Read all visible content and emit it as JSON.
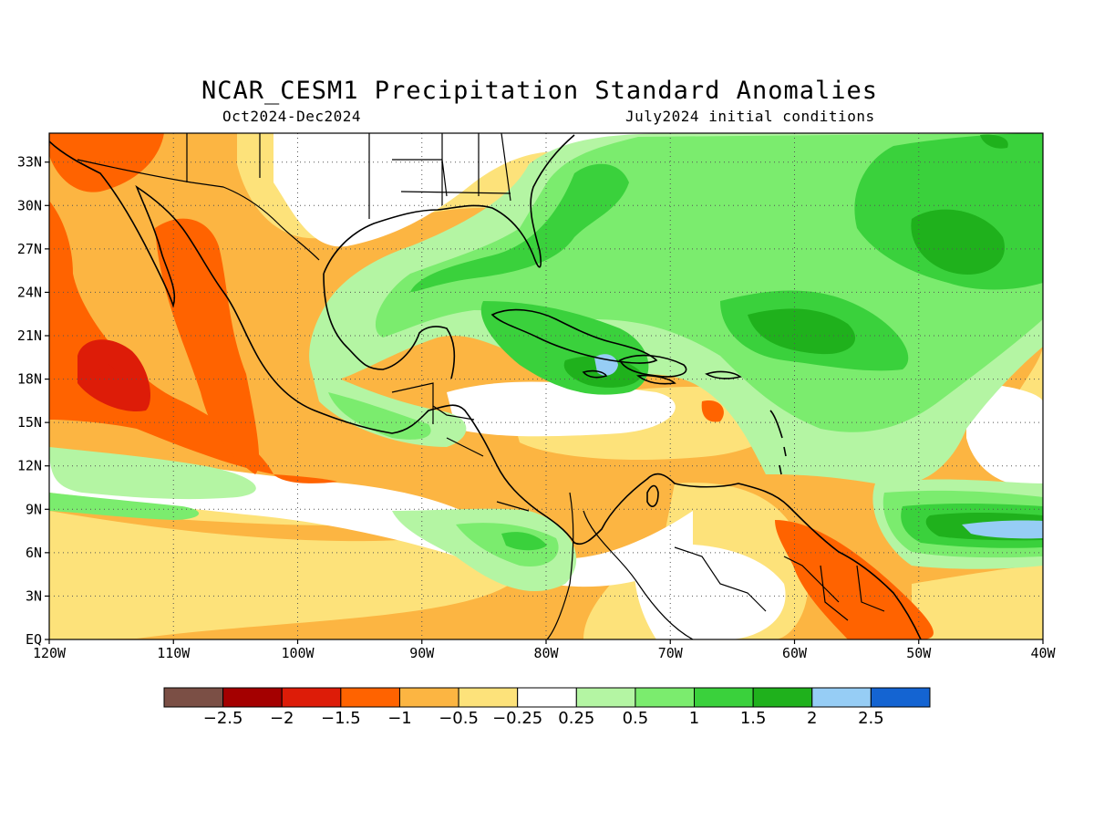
{
  "title": "NCAR_CESM1 Precipitation Standard Anomalies",
  "subtitle_left": "Oct2024-Dec2024",
  "subtitle_right": "July2024 initial conditions",
  "map": {
    "lat_range": [
      0,
      35
    ],
    "lon_range": [
      -120,
      -40
    ],
    "lat_ticks": [
      "33N",
      "30N",
      "27N",
      "24N",
      "21N",
      "18N",
      "15N",
      "12N",
      "9N",
      "6N",
      "3N",
      "EQ"
    ],
    "lon_ticks": [
      "120W",
      "110W",
      "100W",
      "90W",
      "80W",
      "70W",
      "60W",
      "50W",
      "40W"
    ],
    "grid": true,
    "grid_style": "dotted"
  },
  "colorbar": {
    "colors": [
      "#7b4f45",
      "#a40000",
      "#dd1c08",
      "#ff6300",
      "#fcb542",
      "#fde27a",
      "#ffffff",
      "#b4f5a3",
      "#7bec6e",
      "#3ad13c",
      "#1fb11c",
      "#96cdf5",
      "#1464d2"
    ],
    "labels": [
      "-2.5",
      "-2",
      "-1.5",
      "-1",
      "-0.5",
      "-0.25",
      "0.25",
      "0.5",
      "1",
      "1.5",
      "2",
      "2.5"
    ]
  }
}
